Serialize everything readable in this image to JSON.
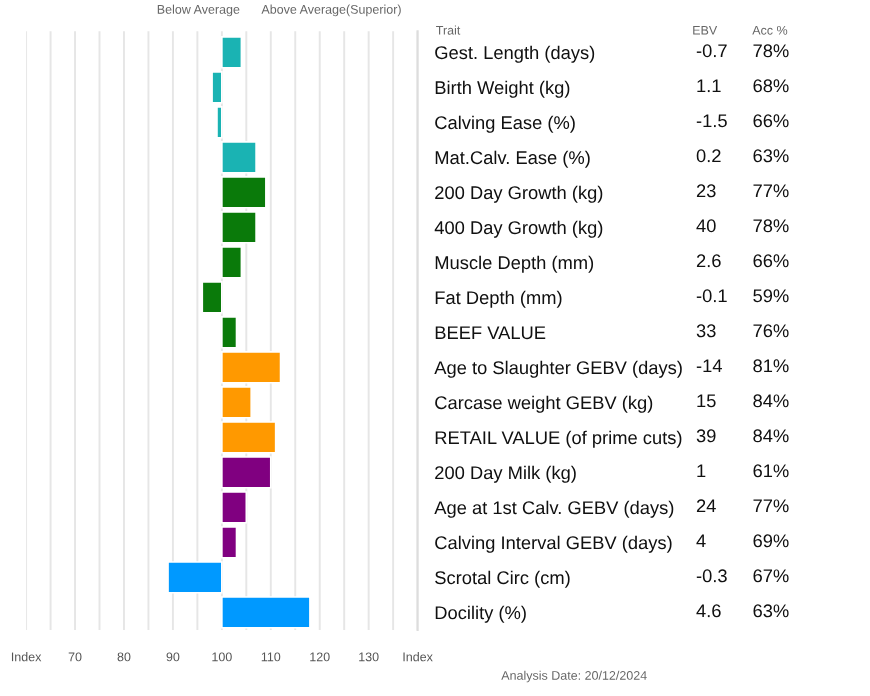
{
  "chart_data": {
    "type": "bar",
    "orientation": "horizontal",
    "categories": [
      "Gest. Length (days)",
      "Birth Weight (kg)",
      "Calving Ease (%)",
      "Mat.Calv. Ease (%)",
      "200 Day Growth (kg)",
      "400 Day Growth (kg)",
      "Muscle Depth (mm)",
      "Fat Depth (mm)",
      "BEEF VALUE",
      "Age to Slaughter GEBV (days)",
      "Carcase weight GEBV (kg)",
      "RETAIL VALUE (of prime cuts)",
      "200 Day Milk (kg)",
      "Age at 1st Calv. GEBV (days)",
      "Calving Interval GEBV (days)",
      "Scrotal Circ (cm)",
      "Docility (%)"
    ],
    "base": [
      100,
      100,
      100,
      100,
      100,
      100,
      100,
      100,
      100,
      100,
      100,
      100,
      100,
      100,
      100,
      100,
      100
    ],
    "values": [
      4,
      -2,
      -1,
      7,
      9,
      7,
      4,
      -4,
      3,
      12,
      6,
      11,
      10,
      5,
      3,
      -11,
      18
    ],
    "colors": [
      "#1ab3b3",
      "#1ab3b3",
      "#1ab3b3",
      "#1ab3b3",
      "#0a7a0a",
      "#0a7a0a",
      "#0a7a0a",
      "#0a7a0a",
      "#0a7a0a",
      "#ff9900",
      "#ff9900",
      "#ff9900",
      "#800080",
      "#800080",
      "#800080",
      "#0099ff",
      "#0099ff"
    ],
    "xlim": [
      60,
      140
    ],
    "xticks": [
      {
        "value": 60,
        "label": "Index"
      },
      {
        "value": 65,
        "label": null
      },
      70,
      {
        "value": 75,
        "label": null
      },
      80,
      {
        "value": 85,
        "label": null
      },
      90,
      {
        "value": 95,
        "label": null
      },
      100,
      {
        "value": 105,
        "label": null
      },
      110,
      {
        "value": 115,
        "label": null
      },
      120,
      {
        "value": 125,
        "label": null
      },
      130,
      {
        "value": 135,
        "label": null
      },
      {
        "value": 140,
        "label": "Index"
      }
    ],
    "grid": "x",
    "annotations": [
      "Below Average",
      "Above Average(Superior)",
      "Trait",
      "EBV",
      "Acc %",
      "Analysis Date: 20/12/2024",
      "-0.7",
      "78%",
      "1.1",
      "68%",
      "-1.5",
      "66%",
      "0.2",
      "63%",
      "23",
      "77%",
      "40",
      "78%",
      "2.6",
      "66%",
      "-0.1",
      "59%",
      "33",
      "76%",
      "-14",
      "81%",
      "15",
      "84%",
      "39",
      "84%",
      "1",
      "61%",
      "24",
      "77%",
      "4",
      "69%",
      "-0.3",
      "67%",
      "4.6",
      "63%"
    ]
  }
}
